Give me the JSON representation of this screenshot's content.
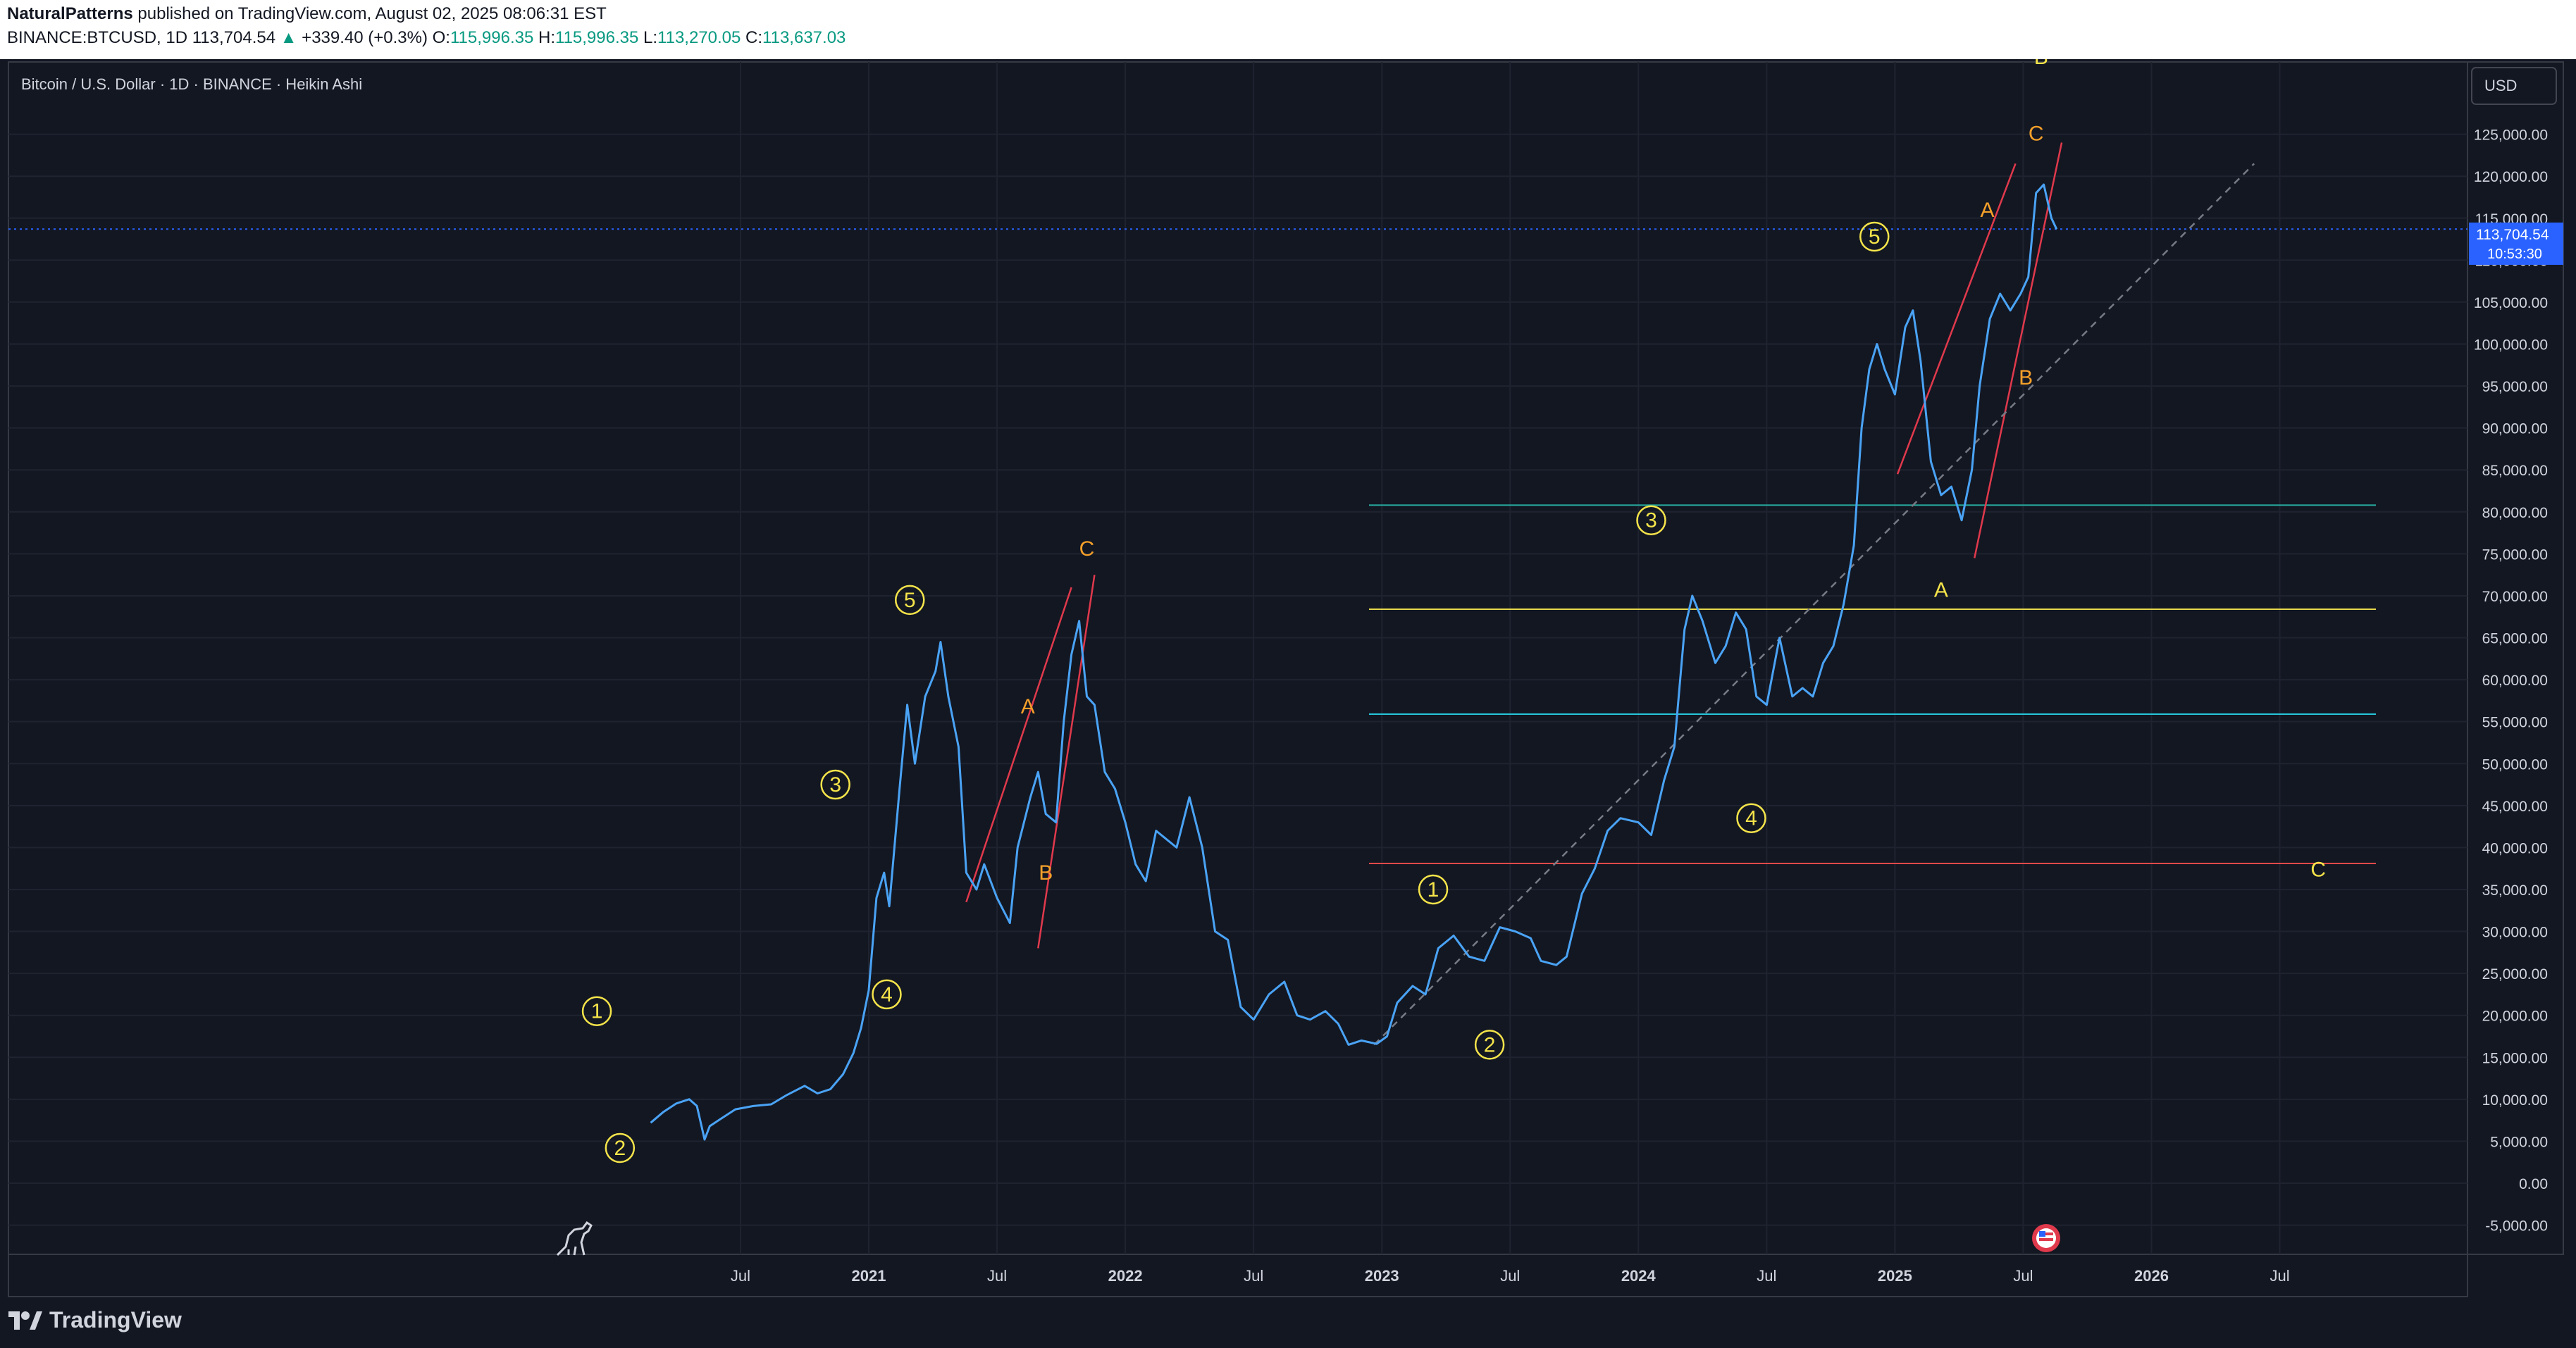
{
  "header": {
    "author": "NaturalPatterns",
    "published": "published on TradingView.com, August 02, 2025 08:06:31 EST",
    "symbol": "BINANCE:BTCUSD, 1D",
    "last": "113,704.54",
    "arrow": "▲",
    "change": "+339.40 (+0.3%)",
    "o_label": "O:",
    "o_val": "115,996.35",
    "h_label": "H:",
    "h_val": "115,996.35",
    "l_label": "L:",
    "l_val": "113,270.05",
    "c_label": "C:",
    "c_val": "113,637.03"
  },
  "chart": {
    "legend_title": "Bitcoin / U.S. Dollar · 1D · BINANCE · Heikin Ashi",
    "currency": "USD",
    "last_price_label": "113,704.54",
    "countdown": "10:53:30",
    "brand": "TradingView"
  },
  "chart_data": {
    "type": "line",
    "title": "Bitcoin / U.S. Dollar · 1D · BINANCE · Heikin Ashi",
    "ylim": [
      -7500,
      130000
    ],
    "xlim": [
      2020.0,
      2026.95
    ],
    "y_ticks": [
      -5000,
      0,
      5000,
      10000,
      15000,
      20000,
      25000,
      30000,
      35000,
      40000,
      45000,
      50000,
      55000,
      60000,
      65000,
      70000,
      75000,
      80000,
      85000,
      90000,
      95000,
      100000,
      105000,
      110000,
      115000,
      120000,
      125000
    ],
    "y_tick_labels": [
      "-5,000.00",
      "0.00",
      "5,000.00",
      "10,000.00",
      "15,000.00",
      "20,000.00",
      "25,000.00",
      "30,000.00",
      "35,000.00",
      "40,000.00",
      "45,000.00",
      "50,000.00",
      "55,000.00",
      "60,000.00",
      "65,000.00",
      "70,000.00",
      "75,000.00",
      "80,000.00",
      "85,000.00",
      "90,000.00",
      "95,000.00",
      "100,000.00",
      "105,000.00",
      "110,000.00",
      "115,000.00",
      "120,000.00",
      "125,000.00"
    ],
    "x_ticks": [
      {
        "t": 2020.5,
        "label": "Jul",
        "bold": false
      },
      {
        "t": 2021.0,
        "label": "2021",
        "bold": true
      },
      {
        "t": 2021.5,
        "label": "Jul",
        "bold": false
      },
      {
        "t": 2022.0,
        "label": "2022",
        "bold": true
      },
      {
        "t": 2022.5,
        "label": "Jul",
        "bold": false
      },
      {
        "t": 2023.0,
        "label": "2023",
        "bold": true
      },
      {
        "t": 2023.5,
        "label": "Jul",
        "bold": false
      },
      {
        "t": 2024.0,
        "label": "2024",
        "bold": true
      },
      {
        "t": 2024.5,
        "label": "Jul",
        "bold": false
      },
      {
        "t": 2025.0,
        "label": "2025",
        "bold": true
      },
      {
        "t": 2025.5,
        "label": "Jul",
        "bold": false
      },
      {
        "t": 2026.0,
        "label": "2026",
        "bold": true
      },
      {
        "t": 2026.5,
        "label": "Jul",
        "bold": false
      }
    ],
    "series": [
      {
        "color": "#4aa3f5",
        "points": [
          [
            2020.15,
            7200
          ],
          [
            2020.2,
            8500
          ],
          [
            2020.25,
            9500
          ],
          [
            2020.3,
            10000
          ],
          [
            2020.33,
            9200
          ],
          [
            2020.36,
            5200
          ],
          [
            2020.38,
            6800
          ],
          [
            2020.42,
            7600
          ],
          [
            2020.48,
            8800
          ],
          [
            2020.55,
            9200
          ],
          [
            2020.62,
            9400
          ],
          [
            2020.68,
            10500
          ],
          [
            2020.75,
            11600
          ],
          [
            2020.8,
            10700
          ],
          [
            2020.85,
            11200
          ],
          [
            2020.9,
            13000
          ],
          [
            2020.94,
            15500
          ],
          [
            2020.97,
            18500
          ],
          [
            2021.0,
            23000
          ],
          [
            2021.03,
            34000
          ],
          [
            2021.06,
            37000
          ],
          [
            2021.08,
            33000
          ],
          [
            2021.12,
            47000
          ],
          [
            2021.15,
            57000
          ],
          [
            2021.18,
            50000
          ],
          [
            2021.22,
            58000
          ],
          [
            2021.26,
            61000
          ],
          [
            2021.28,
            64500
          ],
          [
            2021.31,
            58000
          ],
          [
            2021.35,
            52000
          ],
          [
            2021.38,
            37000
          ],
          [
            2021.42,
            35000
          ],
          [
            2021.45,
            38000
          ],
          [
            2021.5,
            34000
          ],
          [
            2021.55,
            31000
          ],
          [
            2021.58,
            40000
          ],
          [
            2021.63,
            46000
          ],
          [
            2021.66,
            49000
          ],
          [
            2021.69,
            44000
          ],
          [
            2021.73,
            43000
          ],
          [
            2021.76,
            55000
          ],
          [
            2021.79,
            63000
          ],
          [
            2021.82,
            67000
          ],
          [
            2021.85,
            58000
          ],
          [
            2021.88,
            57000
          ],
          [
            2021.92,
            49000
          ],
          [
            2021.96,
            47000
          ],
          [
            2022.0,
            43000
          ],
          [
            2022.04,
            38000
          ],
          [
            2022.08,
            36000
          ],
          [
            2022.12,
            42000
          ],
          [
            2022.2,
            40000
          ],
          [
            2022.25,
            46000
          ],
          [
            2022.3,
            40000
          ],
          [
            2022.35,
            30000
          ],
          [
            2022.4,
            29000
          ],
          [
            2022.45,
            21000
          ],
          [
            2022.5,
            19500
          ],
          [
            2022.56,
            22500
          ],
          [
            2022.62,
            24000
          ],
          [
            2022.67,
            20000
          ],
          [
            2022.72,
            19500
          ],
          [
            2022.78,
            20500
          ],
          [
            2022.83,
            19000
          ],
          [
            2022.87,
            16500
          ],
          [
            2022.92,
            17000
          ],
          [
            2022.98,
            16600
          ],
          [
            2023.02,
            17500
          ],
          [
            2023.06,
            21500
          ],
          [
            2023.12,
            23500
          ],
          [
            2023.17,
            22500
          ],
          [
            2023.22,
            28000
          ],
          [
            2023.28,
            29500
          ],
          [
            2023.34,
            27000
          ],
          [
            2023.4,
            26500
          ],
          [
            2023.46,
            30500
          ],
          [
            2023.52,
            30000
          ],
          [
            2023.58,
            29200
          ],
          [
            2023.62,
            26500
          ],
          [
            2023.68,
            26000
          ],
          [
            2023.72,
            27000
          ],
          [
            2023.78,
            34500
          ],
          [
            2023.83,
            37500
          ],
          [
            2023.88,
            42000
          ],
          [
            2023.93,
            43500
          ],
          [
            2024.0,
            43000
          ],
          [
            2024.05,
            41500
          ],
          [
            2024.1,
            48000
          ],
          [
            2024.14,
            52000
          ],
          [
            2024.18,
            66000
          ],
          [
            2024.21,
            70000
          ],
          [
            2024.25,
            67000
          ],
          [
            2024.3,
            62000
          ],
          [
            2024.34,
            64000
          ],
          [
            2024.38,
            68000
          ],
          [
            2024.42,
            66000
          ],
          [
            2024.46,
            58000
          ],
          [
            2024.5,
            57000
          ],
          [
            2024.55,
            65000
          ],
          [
            2024.6,
            58000
          ],
          [
            2024.64,
            59000
          ],
          [
            2024.68,
            58000
          ],
          [
            2024.72,
            62000
          ],
          [
            2024.76,
            64000
          ],
          [
            2024.8,
            69000
          ],
          [
            2024.84,
            76000
          ],
          [
            2024.87,
            90000
          ],
          [
            2024.9,
            97000
          ],
          [
            2024.93,
            100000
          ],
          [
            2024.96,
            97000
          ],
          [
            2025.0,
            94000
          ],
          [
            2025.04,
            102000
          ],
          [
            2025.07,
            104000
          ],
          [
            2025.1,
            98000
          ],
          [
            2025.14,
            86000
          ],
          [
            2025.18,
            82000
          ],
          [
            2025.22,
            83000
          ],
          [
            2025.26,
            79000
          ],
          [
            2025.3,
            85000
          ],
          [
            2025.33,
            95000
          ],
          [
            2025.37,
            103000
          ],
          [
            2025.41,
            106000
          ],
          [
            2025.45,
            104000
          ],
          [
            2025.49,
            106000
          ],
          [
            2025.52,
            108000
          ],
          [
            2025.55,
            118000
          ],
          [
            2025.58,
            119000
          ],
          [
            2025.61,
            115000
          ],
          [
            2025.63,
            113700
          ]
        ]
      }
    ],
    "horizontal_levels": [
      {
        "price": 80800,
        "color": "#26a69a",
        "from": 2022.95
      },
      {
        "price": 68400,
        "color": "#e6d84a",
        "from": 2022.95
      },
      {
        "price": 55900,
        "color": "#26c6da",
        "from": 2022.95
      },
      {
        "price": 38100,
        "color": "#e04a4a",
        "from": 2022.95
      }
    ],
    "trend_lines": [
      {
        "points": [
          [
            2021.38,
            33500
          ],
          [
            2021.79,
            71000
          ]
        ],
        "color": "#e0394c"
      },
      {
        "points": [
          [
            2021.66,
            28000
          ],
          [
            2021.88,
            72500
          ]
        ],
        "color": "#e0394c"
      },
      {
        "points": [
          [
            2025.01,
            84500
          ],
          [
            2025.47,
            121500
          ]
        ],
        "color": "#e0394c"
      },
      {
        "points": [
          [
            2025.31,
            74500
          ],
          [
            2025.65,
            124000
          ]
        ],
        "color": "#e0394c"
      },
      {
        "points": [
          [
            2022.97,
            16500
          ],
          [
            2026.4,
            121500
          ]
        ],
        "color": "#777b85",
        "dashed": true
      }
    ],
    "wave_labels": [
      {
        "text": "1",
        "t": 2019.94,
        "p": 20500,
        "circled": true,
        "color": "#f5e44a"
      },
      {
        "text": "2",
        "t": 2020.03,
        "p": 4200,
        "circled": true,
        "color": "#f5e44a"
      },
      {
        "text": "3",
        "t": 2020.87,
        "p": 47500,
        "circled": true,
        "color": "#f5e44a"
      },
      {
        "text": "4",
        "t": 2021.07,
        "p": 22500,
        "circled": true,
        "color": "#f5e44a"
      },
      {
        "text": "5",
        "t": 2021.16,
        "p": 69500,
        "circled": true,
        "color": "#f5e44a"
      },
      {
        "text": "A",
        "t": 2021.62,
        "p": 56800,
        "circled": false,
        "color": "#f5a02a"
      },
      {
        "text": "B",
        "t": 2021.69,
        "p": 37000,
        "circled": false,
        "color": "#f5a02a"
      },
      {
        "text": "C",
        "t": 2021.85,
        "p": 75600,
        "circled": false,
        "color": "#f5a02a"
      },
      {
        "text": "1",
        "t": 2023.2,
        "p": 35000,
        "circled": true,
        "color": "#f5e44a"
      },
      {
        "text": "2",
        "t": 2023.42,
        "p": 16500,
        "circled": true,
        "color": "#f5e44a"
      },
      {
        "text": "3",
        "t": 2024.05,
        "p": 79000,
        "circled": true,
        "color": "#f5e44a"
      },
      {
        "text": "4",
        "t": 2024.44,
        "p": 43500,
        "circled": true,
        "color": "#f5e44a"
      },
      {
        "text": "5",
        "t": 2024.92,
        "p": 112800,
        "circled": true,
        "color": "#f5e44a"
      },
      {
        "text": "A",
        "t": 2025.18,
        "p": 70700,
        "circled": false,
        "color": "#f5e44a"
      },
      {
        "text": "A",
        "t": 2025.36,
        "p": 116000,
        "circled": false,
        "color": "#f5a02a"
      },
      {
        "text": "B",
        "t": 2025.51,
        "p": 96000,
        "circled": false,
        "color": "#f5a02a"
      },
      {
        "text": "C",
        "t": 2025.55,
        "p": 125100,
        "circled": false,
        "color": "#f5a02a"
      },
      {
        "text": "B",
        "t": 2025.57,
        "p": 134200,
        "circled": false,
        "color": "#f5e44a"
      },
      {
        "text": "C",
        "t": 2026.65,
        "p": 37400,
        "circled": false,
        "color": "#f5e44a"
      }
    ],
    "last_price": 113704.54
  }
}
